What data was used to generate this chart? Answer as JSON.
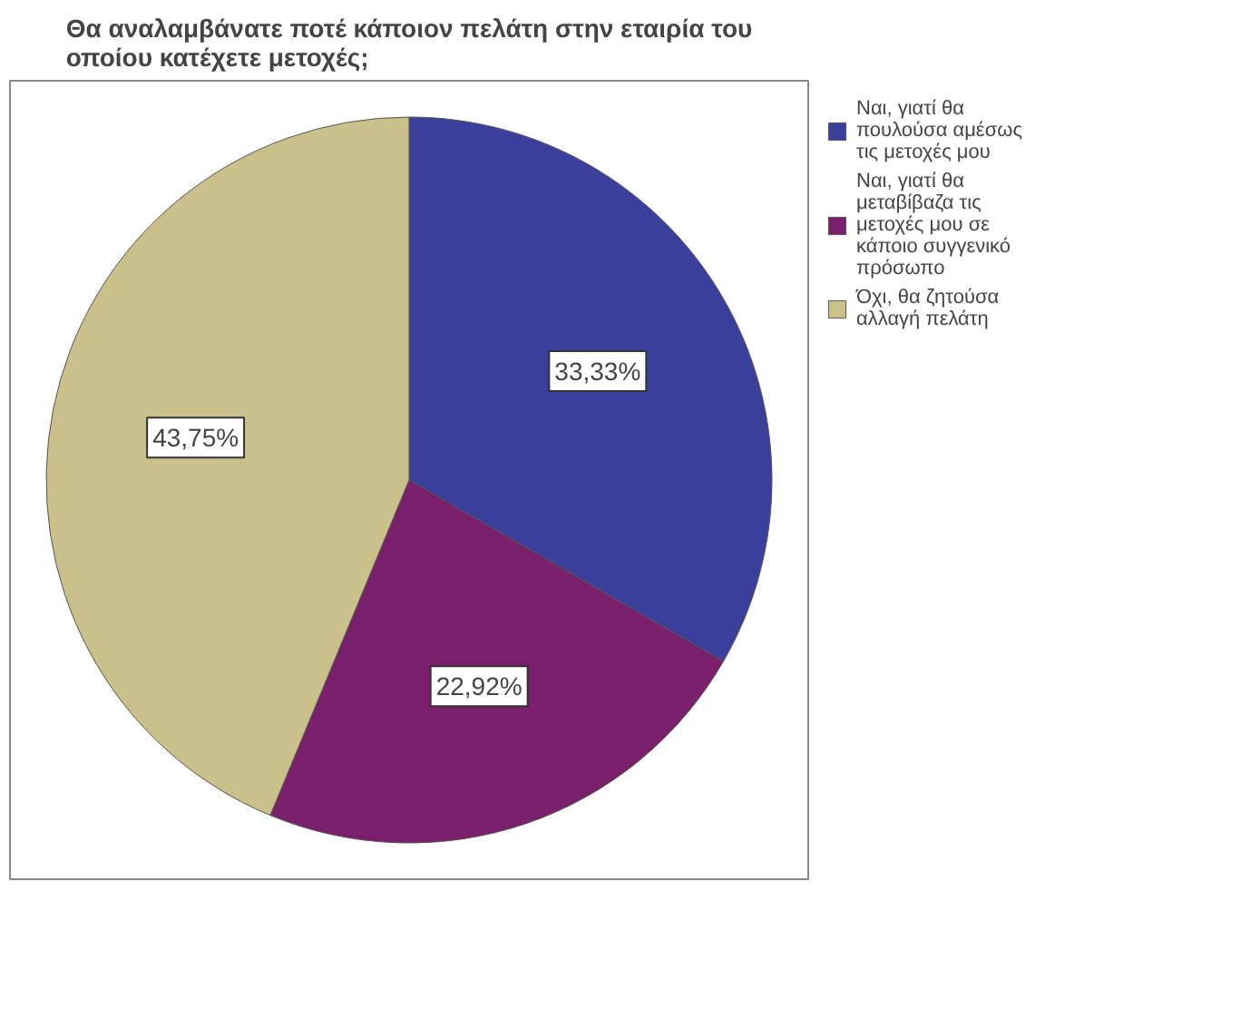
{
  "chart_data": {
    "type": "pie",
    "title": "Θα αναλαμβάνατε ποτέ κάποιον πελάτη στην εταιρία του οποίου κατέχετε μετοχές;",
    "categories": [
      "Ναι, γιατί θα πουλούσα αμέσως τις μετοχές μου",
      "Ναι, γιατί θα μεταβίβαζα τις μετοχές μου σε κάποιο συγγενικό πρόσωπο",
      "Όχι, θα ζητούσα αλλαγή πελάτη"
    ],
    "values": [
      33.33,
      22.92,
      43.75
    ],
    "colors": [
      "#3b3f9c",
      "#7a1f6b",
      "#c9c08a"
    ],
    "value_labels": [
      "33,33%",
      "22,92%",
      "43,75%"
    ],
    "legend": "right"
  }
}
